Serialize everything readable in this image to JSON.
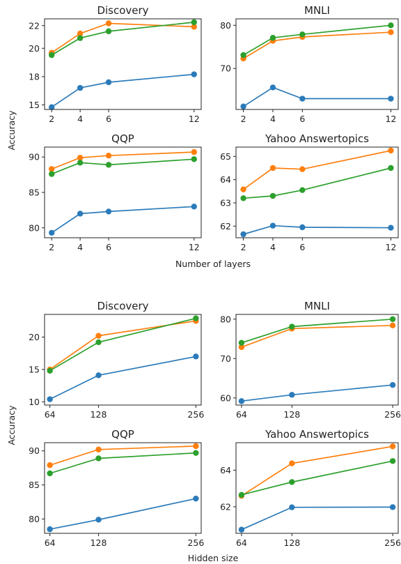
{
  "figure": {
    "ylabel": "Accuracy",
    "colors": {
      "blue": "#2b7bba",
      "orange": "#ff7f0e",
      "green": "#2ca02c",
      "frame": "#222222"
    }
  },
  "chart_data": [
    {
      "type": "line",
      "title": "Discovery",
      "xlabel": "Number of layers",
      "x": [
        2,
        4,
        6,
        12
      ],
      "xticks": [
        "2",
        "4",
        "6",
        "12"
      ],
      "xlim": [
        1.5,
        12.5
      ],
      "yticks": [
        "15",
        "18",
        "20",
        "22"
      ],
      "ytick_values": [
        15,
        17.5,
        20,
        22
      ],
      "ylim": [
        14.6,
        22.6
      ],
      "series": [
        {
          "color": "#2b7bba",
          "values": [
            14.8,
            16.5,
            17.0,
            17.7
          ]
        },
        {
          "color": "#ff7f0e",
          "values": [
            19.6,
            21.3,
            22.2,
            21.9
          ]
        },
        {
          "color": "#2ca02c",
          "values": [
            19.4,
            20.9,
            21.5,
            22.3
          ]
        }
      ]
    },
    {
      "type": "line",
      "title": "MNLI",
      "xlabel": "Number of layers",
      "x": [
        2,
        4,
        6,
        12
      ],
      "xticks": [
        "2",
        "4",
        "6",
        "12"
      ],
      "xlim": [
        1.5,
        12.5
      ],
      "yticks": [
        "70",
        "80"
      ],
      "ytick_values": [
        70,
        80
      ],
      "ylim": [
        60.5,
        81.5
      ],
      "series": [
        {
          "color": "#2b7bba",
          "values": [
            61.2,
            65.6,
            63.0,
            63.0
          ]
        },
        {
          "color": "#ff7f0e",
          "values": [
            72.3,
            76.4,
            77.3,
            78.4
          ]
        },
        {
          "color": "#2ca02c",
          "values": [
            73.1,
            77.1,
            77.9,
            80.0
          ]
        }
      ]
    },
    {
      "type": "line",
      "title": "QQP",
      "xlabel": "Number of layers",
      "x": [
        2,
        4,
        6,
        12
      ],
      "xticks": [
        "2",
        "4",
        "6",
        "12"
      ],
      "xlim": [
        1.5,
        12.5
      ],
      "yticks": [
        "80",
        "85",
        "90"
      ],
      "ytick_values": [
        80,
        85,
        90
      ],
      "ylim": [
        78.6,
        91.4
      ],
      "series": [
        {
          "color": "#2b7bba",
          "values": [
            79.3,
            82.0,
            82.3,
            83.0
          ]
        },
        {
          "color": "#ff7f0e",
          "values": [
            88.3,
            89.9,
            90.2,
            90.7
          ]
        },
        {
          "color": "#2ca02c",
          "values": [
            87.6,
            89.2,
            88.9,
            89.7
          ]
        }
      ]
    },
    {
      "type": "line",
      "title": "Yahoo Answertopics",
      "xlabel": "Number of layers",
      "x": [
        2,
        4,
        6,
        12
      ],
      "xticks": [
        "2",
        "4",
        "6",
        "12"
      ],
      "xlim": [
        1.5,
        12.5
      ],
      "yticks": [
        "62",
        "63",
        "64",
        "65"
      ],
      "ytick_values": [
        62,
        63,
        64,
        65
      ],
      "ylim": [
        61.5,
        65.4
      ],
      "series": [
        {
          "color": "#2b7bba",
          "values": [
            61.65,
            62.02,
            61.95,
            61.93
          ]
        },
        {
          "color": "#ff7f0e",
          "values": [
            63.58,
            64.5,
            64.45,
            65.25
          ]
        },
        {
          "color": "#2ca02c",
          "values": [
            63.2,
            63.3,
            63.55,
            64.5
          ]
        }
      ]
    },
    {
      "type": "line",
      "title": "Discovery",
      "xlabel": "Hidden size",
      "x": [
        64,
        128,
        256
      ],
      "xticks": [
        "64",
        "128",
        "256"
      ],
      "xlim": [
        57,
        263
      ],
      "yticks": [
        "10",
        "15",
        "20"
      ],
      "ytick_values": [
        10,
        15,
        20
      ],
      "ylim": [
        9.5,
        23.5
      ],
      "series": [
        {
          "color": "#2b7bba",
          "values": [
            10.4,
            14.1,
            17.0
          ]
        },
        {
          "color": "#ff7f0e",
          "values": [
            15.0,
            20.2,
            22.5
          ]
        },
        {
          "color": "#2ca02c",
          "values": [
            14.8,
            19.2,
            22.9
          ]
        }
      ]
    },
    {
      "type": "line",
      "title": "MNLI",
      "xlabel": "Hidden size",
      "x": [
        64,
        128,
        256
      ],
      "xticks": [
        "64",
        "128",
        "256"
      ],
      "xlim": [
        57,
        263
      ],
      "yticks": [
        "60",
        "70",
        "80"
      ],
      "ytick_values": [
        60,
        70,
        80
      ],
      "ylim": [
        58.2,
        81.2
      ],
      "series": [
        {
          "color": "#2b7bba",
          "values": [
            59.2,
            60.8,
            63.3
          ]
        },
        {
          "color": "#ff7f0e",
          "values": [
            72.9,
            77.6,
            78.4
          ]
        },
        {
          "color": "#2ca02c",
          "values": [
            74.0,
            78.1,
            80.0
          ]
        }
      ]
    },
    {
      "type": "line",
      "title": "QQP",
      "xlabel": "Hidden size",
      "x": [
        64,
        128,
        256
      ],
      "xticks": [
        "64",
        "128",
        "256"
      ],
      "xlim": [
        57,
        263
      ],
      "yticks": [
        "80",
        "85",
        "90"
      ],
      "ytick_values": [
        80,
        85,
        90
      ],
      "ylim": [
        77.9,
        91.2
      ],
      "series": [
        {
          "color": "#2b7bba",
          "values": [
            78.5,
            79.9,
            83.0
          ]
        },
        {
          "color": "#ff7f0e",
          "values": [
            87.9,
            90.2,
            90.7
          ]
        },
        {
          "color": "#2ca02c",
          "values": [
            86.7,
            88.9,
            89.7
          ]
        }
      ]
    },
    {
      "type": "line",
      "title": "Yahoo Answertopics",
      "xlabel": "Hidden size",
      "x": [
        64,
        128,
        256
      ],
      "xticks": [
        "64",
        "128",
        "256"
      ],
      "xlim": [
        57,
        263
      ],
      "yticks": [
        "62",
        "64"
      ],
      "ytick_values": [
        62,
        64
      ],
      "ylim": [
        60.55,
        65.5
      ],
      "series": [
        {
          "color": "#2b7bba",
          "values": [
            60.75,
            61.97,
            61.98
          ]
        },
        {
          "color": "#ff7f0e",
          "values": [
            62.6,
            64.37,
            65.3
          ]
        },
        {
          "color": "#2ca02c",
          "values": [
            62.65,
            63.35,
            64.5
          ]
        }
      ]
    }
  ]
}
